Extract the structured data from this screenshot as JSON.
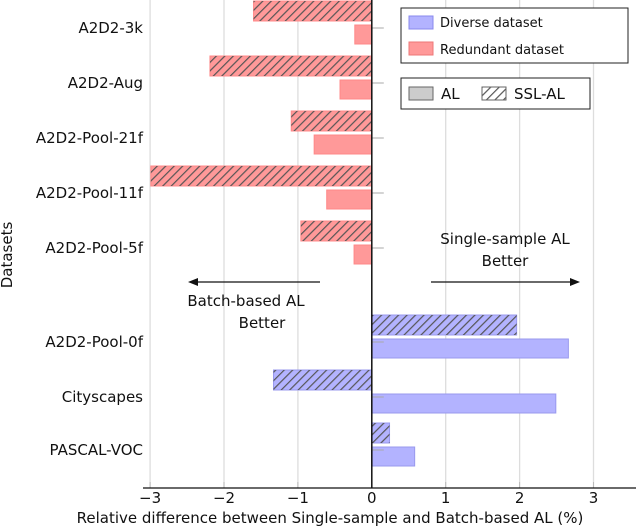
{
  "chart_data": {
    "type": "bar",
    "orientation": "horizontal",
    "xlabel": "Relative difference between Single-sample and Batch-based AL (%)",
    "ylabel": "Datasets",
    "xlim": [
      -3.05,
      3.5
    ],
    "xticks": [
      "−3",
      "−2",
      "−1",
      "0",
      "1",
      "2",
      "3"
    ],
    "xtick_values": [
      -3,
      -2,
      -1,
      0,
      1,
      2,
      3
    ],
    "grid": "vertical",
    "categories": [
      "A2D2-3k",
      "A2D2-Aug",
      "A2D2-Pool-21f",
      "A2D2-Pool-11f",
      "A2D2-Pool-5f",
      "A2D2-Pool-0f",
      "Cityscapes",
      "PASCAL-VOC"
    ],
    "dataset_type": [
      "redundant",
      "redundant",
      "redundant",
      "redundant",
      "redundant",
      "diverse",
      "diverse",
      "diverse"
    ],
    "series": [
      {
        "name": "SSL-AL",
        "pattern": "hatched",
        "values": [
          -1.6,
          -2.19,
          -1.09,
          -2.99,
          -0.96,
          1.96,
          -1.33,
          0.24
        ]
      },
      {
        "name": "AL",
        "pattern": "solid",
        "values": [
          -0.23,
          -0.43,
          -0.78,
          -0.61,
          -0.24,
          2.66,
          2.49,
          0.58
        ]
      }
    ],
    "colors": {
      "diverse": "#b3b3ff",
      "redundant": "#ff9999"
    },
    "legend": {
      "placement": "top-right",
      "color_entries": [
        "Diverse dataset",
        "Redundant dataset"
      ],
      "pattern_entries": [
        "AL",
        "SSL-AL"
      ]
    },
    "annotations": {
      "right_line1": "Single-sample AL",
      "right_line2": "Better",
      "left_line1": "Batch-based AL",
      "left_line2": "Better"
    }
  }
}
